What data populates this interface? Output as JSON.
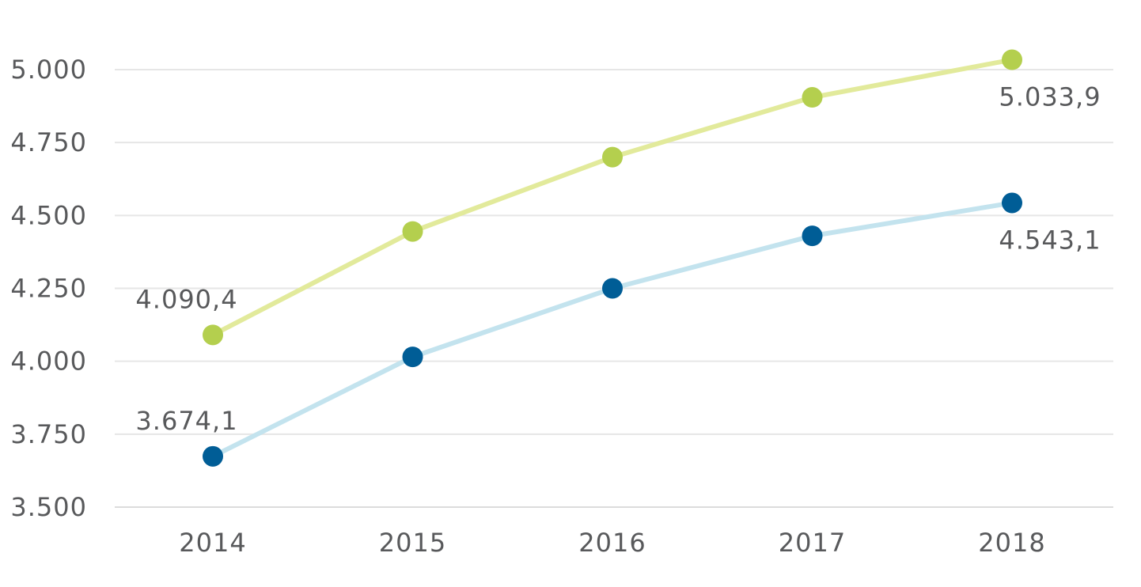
{
  "chart_data": {
    "type": "line",
    "title": "",
    "xlabel": "",
    "ylabel": "",
    "categories": [
      "2014",
      "2015",
      "2016",
      "2017",
      "2018"
    ],
    "ylim": [
      3500,
      5100
    ],
    "yticks": [
      3500,
      3750,
      4000,
      4250,
      4500,
      4750,
      5000
    ],
    "ytick_labels": [
      "3.500",
      "3.750",
      "4.000",
      "4.250",
      "4.500",
      "4.750",
      "5.000"
    ],
    "grid": true,
    "legend": "none",
    "series": [
      {
        "values": [
          4090.4,
          4445,
          4700,
          4905,
          5033.9
        ],
        "line_color": "#e2ea9b",
        "marker_color": "#b4cf4e",
        "data_labels": [
          {
            "index": 0,
            "text": "4.090,4",
            "placement": "above"
          },
          {
            "index": 4,
            "text": "5.033,9",
            "placement": "below"
          }
        ]
      },
      {
        "values": [
          3674.1,
          4015,
          4250,
          4430,
          4543.1
        ],
        "line_color": "#c3e3ee",
        "marker_color": "#005d96",
        "data_labels": [
          {
            "index": 0,
            "text": "3.674,1",
            "placement": "above"
          },
          {
            "index": 4,
            "text": "4.543,1",
            "placement": "below"
          }
        ]
      }
    ]
  }
}
